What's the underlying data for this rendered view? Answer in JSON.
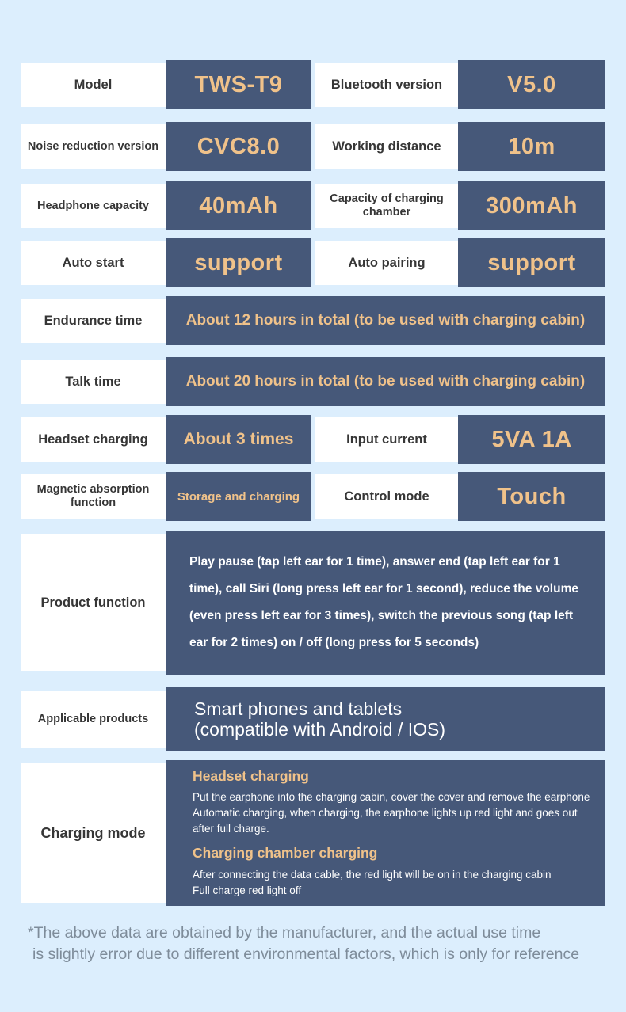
{
  "theme": {
    "background": "#dceefd",
    "cell_dark": "#465879",
    "cell_light": "#ffffff",
    "accent_text": "#f0c28a",
    "label_text": "#363636",
    "light_text": "#ffffff",
    "footnote_text": "#7e8c9a"
  },
  "rows": [
    {
      "label": "Model",
      "value": "TWS-T9",
      "label2": "Bluetooth version",
      "value2": "V5.0"
    },
    {
      "label": "Noise reduction version",
      "value": "CVC8.0",
      "label2": "Working distance",
      "value2": "10m"
    },
    {
      "label": "Headphone capacity",
      "value": "40mAh",
      "label2": "Capacity of charging chamber",
      "value2": "300mAh"
    },
    {
      "label": "Auto start",
      "value": "support",
      "label2": "Auto pairing",
      "value2": "support"
    },
    {
      "label": "Endurance time",
      "value": "About 12 hours in total (to be used with charging cabin)"
    },
    {
      "label": "Talk time",
      "value": "About 20 hours in total (to be used with charging cabin)"
    },
    {
      "label": "Headset charging",
      "value": "About 3 times",
      "label2": "Input current",
      "value2": "5VA 1A"
    },
    {
      "label": "Magnetic absorption function",
      "value": "Storage and charging",
      "label2": "Control mode",
      "value2": "Touch"
    },
    {
      "label": "Product function",
      "value": "Play pause (tap left ear for 1 time), answer end (tap left ear for 1 time), call Siri (long press left ear for 1 second), reduce the volume (even press left ear for 3 times), switch the previous song (tap left ear for 2 times) on / off (long press for 5 seconds)"
    },
    {
      "label": "Applicable products",
      "value": "Smart phones and tablets\n(compatible with Android / IOS)"
    },
    {
      "label": "Charging mode",
      "sections": [
        {
          "heading": "Headset charging",
          "body": "Put the earphone into the charging cabin, cover the cover and remove the earphone\nAutomatic charging, when charging, the earphone lights up red light and goes out\nafter full charge."
        },
        {
          "heading": "Charging chamber charging",
          "body": "After connecting the data cable, the red light will be on in the charging cabin\nFull charge red light off"
        }
      ]
    }
  ],
  "footnote": {
    "line1": "*The above data are obtained by the manufacturer, and the actual use time",
    "line2": "is slightly error due to different environmental factors, which is only for reference"
  }
}
